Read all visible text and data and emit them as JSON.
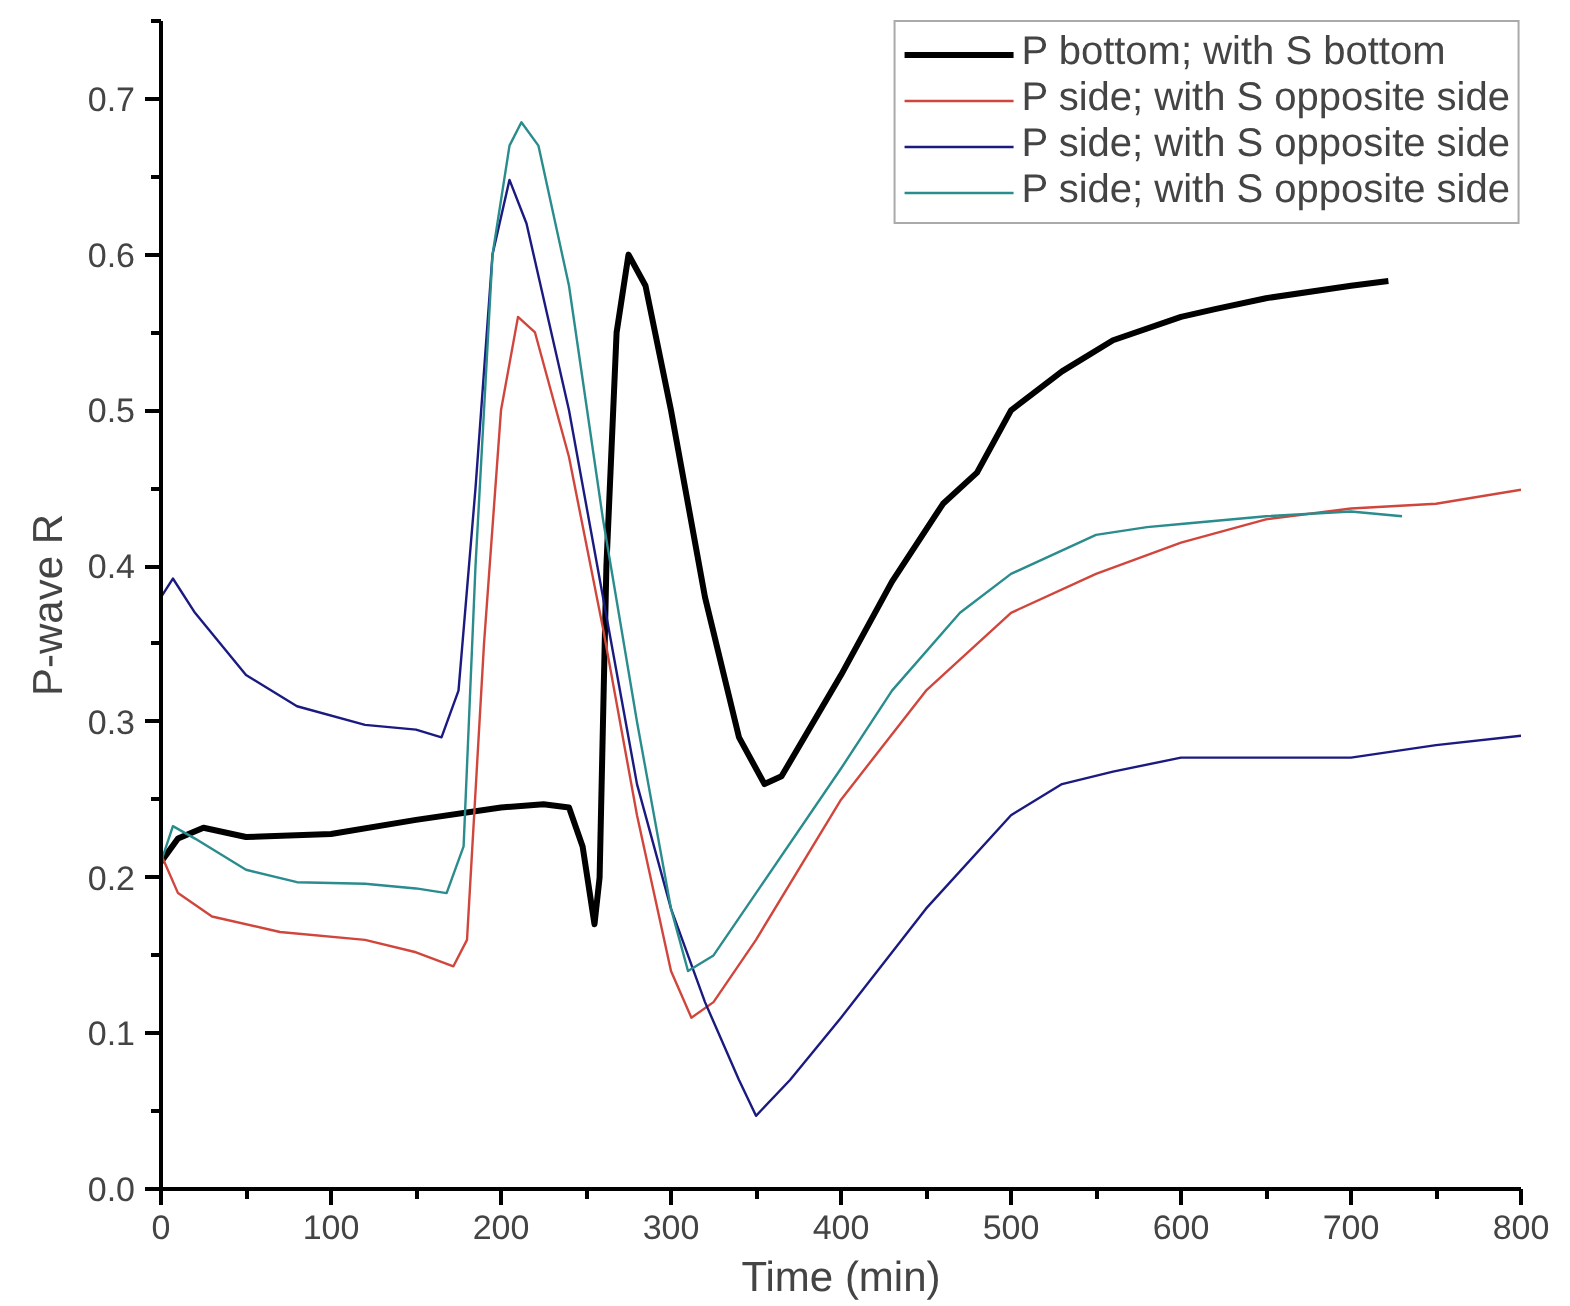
{
  "chart_data": {
    "type": "line",
    "xlabel": "Time (min)",
    "ylabel": "P-wave R",
    "xlim": [
      0,
      800
    ],
    "ylim": [
      0,
      0.75
    ],
    "xticks": [
      0,
      100,
      200,
      300,
      400,
      500,
      600,
      700,
      800
    ],
    "yticks": [
      {
        "value": 0,
        "label": "0.0"
      },
      0.1,
      0.2,
      0.3,
      0.4,
      0.5,
      0.6,
      0.7
    ],
    "grid": false,
    "legend": "top right",
    "marker": "none",
    "line_style": "solid",
    "series": [
      {
        "name": "P bottom; with S bottom",
        "color": "#000000",
        "x": [
          0,
          10,
          25,
          50,
          100,
          150,
          200,
          225,
          240,
          248,
          255,
          258,
          262,
          268,
          275,
          285,
          300,
          320,
          340,
          355,
          365,
          400,
          430,
          460,
          480,
          500,
          530,
          560,
          600,
          620,
          650,
          700,
          722
        ],
        "values": [
          0.21,
          0.225,
          0.232,
          0.226,
          0.228,
          0.237,
          0.245,
          0.247,
          0.245,
          0.22,
          0.17,
          0.2,
          0.4,
          0.55,
          0.6,
          0.58,
          0.5,
          0.38,
          0.29,
          0.26,
          0.265,
          0.33,
          0.39,
          0.44,
          0.46,
          0.5,
          0.525,
          0.545,
          0.56,
          0.565,
          0.572,
          0.58,
          0.583
        ]
      },
      {
        "name": "P side; with S opposite side",
        "color": "#d0463c",
        "x": [
          0,
          10,
          30,
          70,
          120,
          150,
          172,
          180,
          190,
          200,
          210,
          220,
          240,
          260,
          280,
          300,
          312,
          325,
          350,
          400,
          450,
          500,
          550,
          600,
          650,
          700,
          750,
          800
        ],
        "values": [
          0.215,
          0.19,
          0.175,
          0.165,
          0.16,
          0.152,
          0.143,
          0.16,
          0.35,
          0.5,
          0.56,
          0.55,
          0.47,
          0.36,
          0.24,
          0.14,
          0.11,
          0.12,
          0.16,
          0.25,
          0.32,
          0.37,
          0.395,
          0.415,
          0.43,
          0.437,
          0.44,
          0.449
        ]
      },
      {
        "name": "P side; with S opposite side",
        "color": "#1a1a80",
        "x": [
          0,
          7,
          20,
          50,
          80,
          120,
          150,
          165,
          175,
          185,
          195,
          205,
          215,
          240,
          260,
          280,
          300,
          320,
          340,
          350,
          370,
          400,
          450,
          500,
          530,
          560,
          600,
          640,
          700,
          750,
          800
        ],
        "values": [
          0.38,
          0.392,
          0.37,
          0.33,
          0.31,
          0.298,
          0.295,
          0.29,
          0.32,
          0.45,
          0.6,
          0.648,
          0.62,
          0.5,
          0.38,
          0.26,
          0.18,
          0.12,
          0.07,
          0.047,
          0.07,
          0.11,
          0.18,
          0.24,
          0.26,
          0.268,
          0.277,
          0.277,
          0.277,
          0.285,
          0.291
        ]
      },
      {
        "name": "P side; with S opposite side",
        "color": "#2a8c8c",
        "x": [
          0,
          7,
          20,
          50,
          80,
          120,
          150,
          168,
          178,
          185,
          195,
          205,
          212,
          222,
          240,
          260,
          280,
          300,
          310,
          325,
          350,
          400,
          430,
          470,
          500,
          550,
          580,
          600,
          650,
          700,
          730
        ],
        "values": [
          0.21,
          0.233,
          0.225,
          0.205,
          0.197,
          0.196,
          0.193,
          0.19,
          0.22,
          0.4,
          0.6,
          0.67,
          0.685,
          0.67,
          0.58,
          0.43,
          0.3,
          0.18,
          0.14,
          0.15,
          0.19,
          0.27,
          0.32,
          0.37,
          0.395,
          0.42,
          0.425,
          0.427,
          0.432,
          0.435,
          0.432
        ]
      }
    ]
  }
}
